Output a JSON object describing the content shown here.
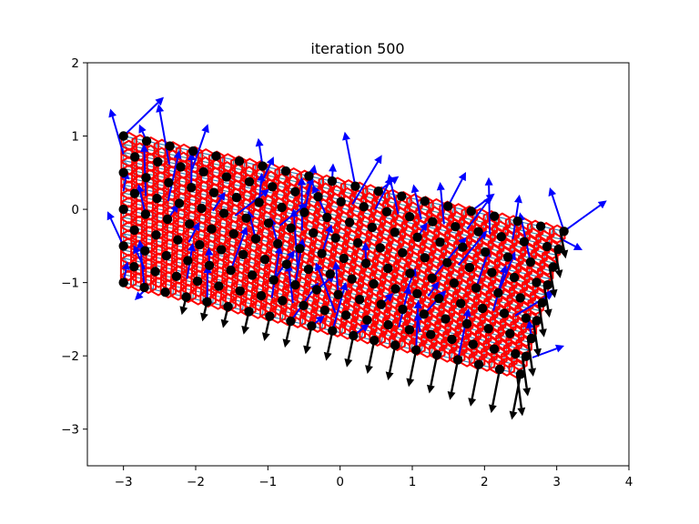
{
  "chart_data": {
    "type": "scatter",
    "title": "iteration 500",
    "xlabel": "",
    "ylabel": "",
    "xlim": [
      -3.5,
      4
    ],
    "ylim": [
      -3.5,
      2
    ],
    "x_ticks": [
      -3,
      -2,
      -1,
      0,
      1,
      2,
      3,
      4
    ],
    "y_ticks": [
      -3,
      -2,
      -1,
      0,
      1,
      2
    ],
    "x_tick_labels": [
      "−3",
      "−2",
      "−1",
      "0",
      "1",
      "2",
      "3",
      "4"
    ],
    "y_tick_labels": [
      "−3",
      "−2",
      "−1",
      "0",
      "1",
      "2"
    ],
    "grid": false,
    "legend": "none",
    "mesh": {
      "corners": {
        "top_left": [
          -3.0,
          1.0
        ],
        "bottom_left": [
          -3.0,
          -1.0
        ],
        "top_right": [
          3.1,
          -0.3
        ],
        "bottom_right": [
          2.5,
          -2.25
        ]
      },
      "columns": 20,
      "rows": 9
    },
    "colors": {
      "nodes": "#000000",
      "grid_lines": "#1f77b4",
      "rings": "#ff0000",
      "force_arrows": "#0000ff",
      "load_arrows": "#000000",
      "axes": "#000000"
    }
  }
}
